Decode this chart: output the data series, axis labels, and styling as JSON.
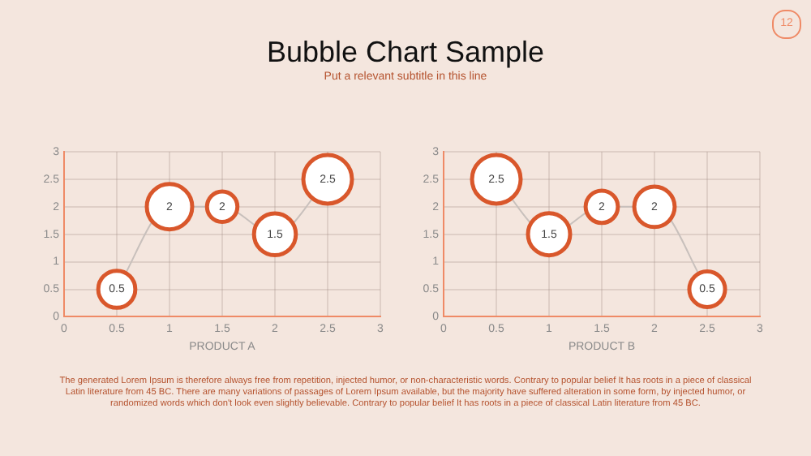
{
  "chart_data": [
    {
      "type": "bubble",
      "title": "Bubble Chart Sample",
      "subtitle": "Put a relevant subtitle in this line",
      "annotations": [
        "12",
        "The generated Lorem Ipsum is therefore always free from repetition, injected humor, or non-characteristic words. Contrary to popular belief It has roots in a piece of classical Latin literature from 45 BC. There are many variations of passages of Lorem Ipsum available, but the majority have suffered alteration in some form, by injected humor, or randomized words which don't look even slightly believable. Contrary to popular belief It has roots in a piece of classical Latin literature from 45 BC."
      ],
      "xlabel": "PRODUCT A",
      "x": [
        0.5,
        1,
        1.5,
        2,
        2.5
      ],
      "series": [
        {
          "color": "#d9572b",
          "values": [
            0.5,
            2,
            2,
            1.5,
            2.5
          ],
          "sizes": [
            0.58,
            0.87,
            0.39,
            0.74,
            1
          ],
          "value_labels": [
            "0.5",
            "2",
            "2",
            "1.5",
            "2.5"
          ]
        },
        {
          "type": "line",
          "color": "#c8c0bc",
          "values": [
            0.5,
            2,
            2,
            1.5,
            2.5
          ]
        }
      ],
      "xlim": [
        0,
        3
      ],
      "xticks": [
        0,
        0.5,
        1,
        1.5,
        2,
        2.5,
        3
      ],
      "ylim": [
        0,
        3
      ],
      "yticks": [
        0,
        0.5,
        1,
        1.5,
        2,
        2.5,
        3
      ],
      "grid": true
    },
    {
      "type": "bubble",
      "xlabel": "PRODUCT B",
      "x": [
        0.5,
        1,
        1.5,
        2,
        2.5
      ],
      "series": [
        {
          "color": "#d9572b",
          "values": [
            2.5,
            1.5,
            2,
            2,
            0.5
          ],
          "sizes": [
            1,
            0.75,
            0.44,
            0.69,
            0.54
          ],
          "value_labels": [
            "2.5",
            "1.5",
            "2",
            "2",
            "0.5"
          ]
        },
        {
          "type": "line",
          "color": "#c8c0bc",
          "values": [
            2.5,
            1.5,
            2,
            2,
            0.5
          ]
        }
      ],
      "xlim": [
        0,
        3
      ],
      "xticks": [
        0,
        0.5,
        1,
        1.5,
        2,
        2.5,
        3
      ],
      "ylim": [
        0,
        3
      ],
      "yticks": [
        0,
        0.5,
        1,
        1.5,
        2,
        2.5,
        3
      ],
      "grid": true
    }
  ]
}
